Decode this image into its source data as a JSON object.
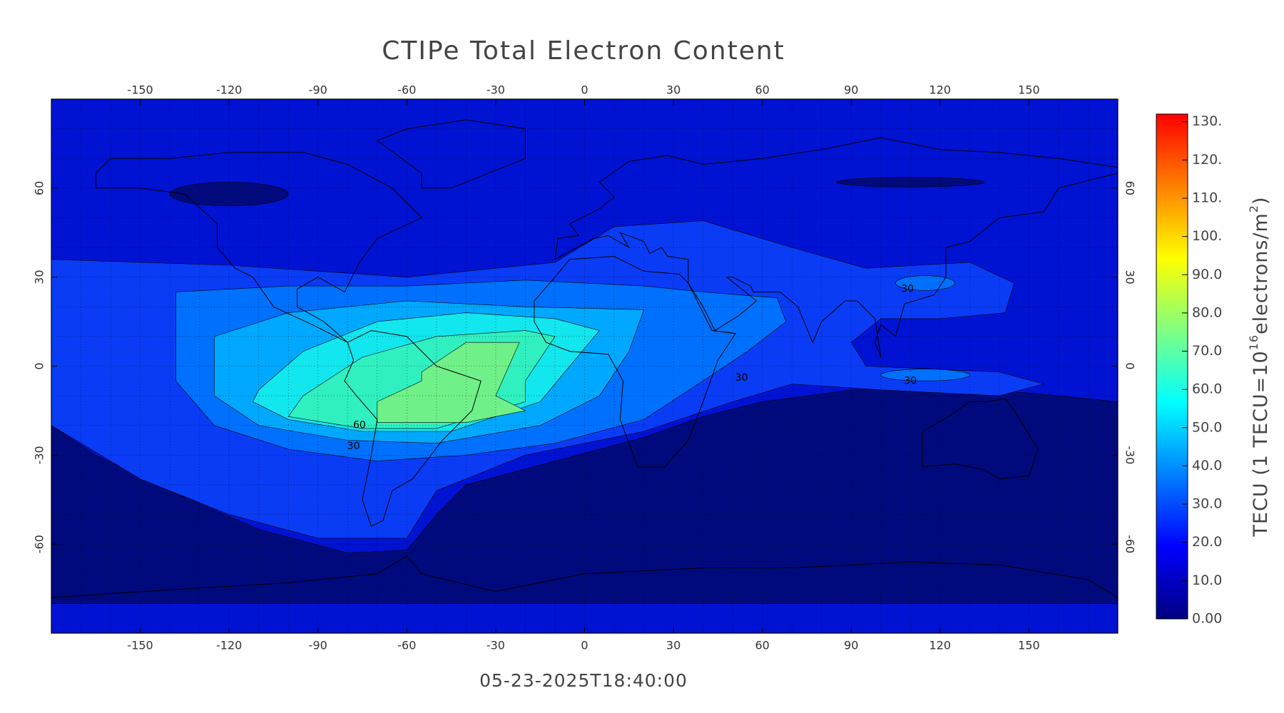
{
  "chart_data": {
    "type": "contour",
    "title": "CTIPe Total Electron Content",
    "timestamp": "05-23-2025T18:40:00",
    "xlim": [
      -180,
      180
    ],
    "ylim": [
      -90,
      90
    ],
    "xticks": [
      -150,
      -120,
      -90,
      -60,
      -30,
      0,
      30,
      60,
      90,
      120,
      150
    ],
    "yticks": [
      -60,
      -30,
      0,
      30,
      60
    ],
    "grid": true,
    "contour_levels": [
      0,
      10,
      20,
      30,
      40,
      50,
      60,
      70
    ],
    "contour_colors": [
      "#000a7c",
      "#0012d2",
      "#0a3cf5",
      "#0070ff",
      "#00a8ff",
      "#12e6ee",
      "#30f0c0",
      "#70f088"
    ],
    "contour_labels": [
      60,
      30,
      30,
      30,
      30
    ],
    "colorbar": {
      "lim": [
        0,
        132
      ],
      "colormap": [
        "#000080",
        "#0000ff",
        "#0080ff",
        "#00ffff",
        "#80ff80",
        "#ffff00",
        "#ff8000",
        "#ff0000"
      ],
      "ticks": [
        {
          "value": 0,
          "label": "0.00"
        },
        {
          "value": 10,
          "label": "10.0"
        },
        {
          "value": 20,
          "label": "20.0"
        },
        {
          "value": 30,
          "label": "30.0"
        },
        {
          "value": 40,
          "label": "40.0"
        },
        {
          "value": 50,
          "label": "50.0"
        },
        {
          "value": 60,
          "label": "60.0"
        },
        {
          "value": 70,
          "label": "70.0"
        },
        {
          "value": 80,
          "label": "80.0"
        },
        {
          "value": 90,
          "label": "90.0"
        },
        {
          "value": 100,
          "label": "100."
        },
        {
          "value": 110,
          "label": "110."
        },
        {
          "value": 120,
          "label": "120."
        },
        {
          "value": 130,
          "label": "130."
        }
      ],
      "label": {
        "prefix": "TECU (1 TECU=10",
        "exp1": "16",
        "middle": "electrons/m",
        "exp2": "2",
        "suffix": ")"
      }
    }
  }
}
